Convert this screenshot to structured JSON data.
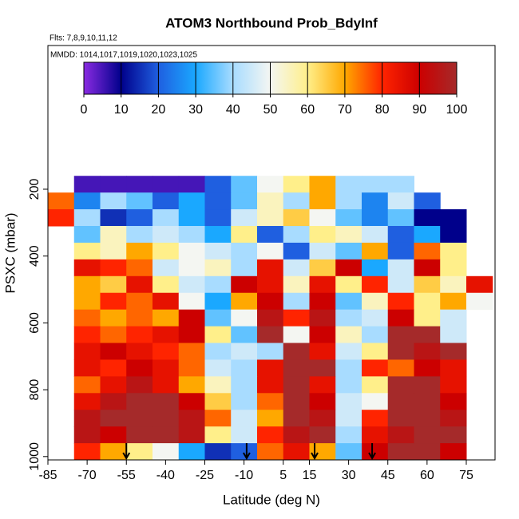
{
  "chart_data": {
    "type": "heatmap",
    "title": "ATOM3 Northbound Prob_BdyInf",
    "subtitle": "Flts: 7,8,9,10,11,12",
    "annotation": "MMDD: 1014,1017,1019,1020,1023,1025",
    "x_label": "Latitude (deg N)",
    "y_label": "PSXC (mbar)",
    "xlim": [
      -85,
      86
    ],
    "ylim": [
      1010,
      -230
    ],
    "xticks": [
      -85,
      -70,
      -55,
      -40,
      -25,
      -10,
      5,
      15,
      30,
      45,
      60,
      75
    ],
    "yticks": [
      200,
      400,
      600,
      800,
      1000
    ],
    "x": [
      -80,
      -70,
      -60,
      -50,
      -40,
      -30,
      -20,
      -10,
      0,
      10,
      20,
      30,
      40,
      50,
      60,
      70,
      80
    ],
    "y": [
      185,
      235,
      285,
      335,
      385,
      435,
      485,
      535,
      585,
      635,
      685,
      735,
      785,
      835,
      885,
      935,
      985
    ],
    "values": [
      [
        null,
        5,
        5,
        5,
        5,
        5,
        20,
        35,
        50,
        60,
        70,
        40,
        40,
        40,
        null,
        null,
        null
      ],
      [
        75,
        25,
        40,
        35,
        20,
        30,
        20,
        35,
        55,
        40,
        70,
        40,
        25,
        45,
        20,
        null,
        null
      ],
      [
        80,
        40,
        15,
        20,
        40,
        30,
        20,
        45,
        55,
        65,
        50,
        35,
        25,
        35,
        10,
        10,
        null
      ],
      [
        null,
        35,
        55,
        40,
        45,
        40,
        30,
        60,
        20,
        40,
        60,
        55,
        45,
        20,
        30,
        10,
        null
      ],
      [
        null,
        60,
        55,
        70,
        60,
        50,
        45,
        40,
        50,
        20,
        45,
        35,
        70,
        20,
        75,
        60,
        null
      ],
      [
        null,
        85,
        80,
        75,
        45,
        50,
        55,
        40,
        85,
        45,
        65,
        90,
        30,
        45,
        90,
        60,
        null
      ],
      [
        null,
        70,
        65,
        85,
        60,
        45,
        40,
        90,
        85,
        55,
        85,
        60,
        80,
        45,
        65,
        55,
        85
      ],
      [
        null,
        70,
        80,
        75,
        85,
        50,
        30,
        70,
        90,
        40,
        90,
        35,
        55,
        80,
        60,
        70,
        50
      ],
      [
        null,
        75,
        70,
        75,
        70,
        90,
        35,
        50,
        95,
        80,
        95,
        40,
        45,
        90,
        60,
        45,
        null
      ],
      [
        null,
        80,
        75,
        80,
        85,
        90,
        60,
        35,
        100,
        50,
        90,
        55,
        40,
        100,
        100,
        45,
        null
      ],
      [
        null,
        85,
        90,
        85,
        80,
        75,
        40,
        45,
        40,
        100,
        85,
        45,
        60,
        100,
        95,
        100,
        null
      ],
      [
        null,
        85,
        80,
        90,
        85,
        75,
        45,
        40,
        85,
        100,
        100,
        40,
        80,
        75,
        90,
        85,
        null
      ],
      [
        null,
        75,
        85,
        95,
        85,
        70,
        55,
        40,
        85,
        100,
        85,
        40,
        60,
        100,
        100,
        85,
        null
      ],
      [
        null,
        85,
        95,
        100,
        100,
        90,
        65,
        40,
        75,
        100,
        90,
        45,
        50,
        100,
        100,
        90,
        null
      ],
      [
        null,
        95,
        100,
        100,
        100,
        95,
        75,
        45,
        70,
        100,
        95,
        45,
        80,
        100,
        100,
        95,
        null
      ],
      [
        null,
        95,
        90,
        100,
        100,
        95,
        60,
        45,
        80,
        95,
        100,
        40,
        85,
        95,
        100,
        100,
        null
      ],
      [
        null,
        80,
        70,
        60,
        50,
        30,
        15,
        20,
        75,
        85,
        70,
        35,
        90,
        100,
        100,
        90,
        null
      ]
    ],
    "colorbar_lim": [
      0,
      100
    ],
    "colorbar_ticks": [
      0,
      10,
      20,
      30,
      40,
      50,
      60,
      70,
      80,
      90,
      100
    ],
    "colorscale": [
      "#8a2be2",
      "#00008b",
      "#1f5fe0",
      "#1aa8ff",
      "#a8dcff",
      "#f4f6f2",
      "#ffef8a",
      "#ffa800",
      "#ff2400",
      "#cc0000",
      "#a52a2a"
    ],
    "arrows": [
      -55,
      -9,
      17,
      39
    ]
  }
}
